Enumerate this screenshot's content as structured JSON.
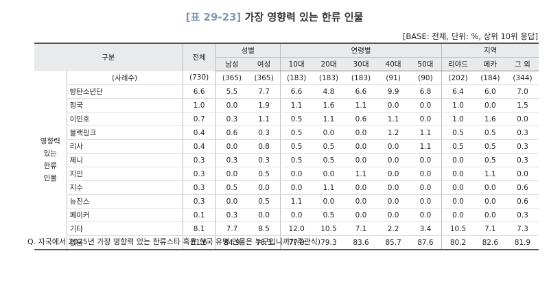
{
  "title": {
    "prefix": "[표 29-23]",
    "text": "가장 영향력 있는 한류 인물"
  },
  "base_note": "[BASE: 전체, 단위: %, 상위 10위 응답]",
  "header": {
    "group_label": "구분",
    "total": "전체",
    "gender": "성별",
    "age": "연령별",
    "region": "지역",
    "columns": [
      "남성",
      "여성",
      "10대",
      "20대",
      "30대",
      "40대",
      "50대",
      "리야드",
      "메카",
      "그 외"
    ]
  },
  "category_label": [
    "영향력",
    "있는",
    "한류",
    "인물"
  ],
  "sample_row": {
    "label": "(사례수)",
    "values": [
      "(730)",
      "(365)",
      "(365)",
      "(183)",
      "(183)",
      "(183)",
      "(91)",
      "(90)",
      "(202)",
      "(184)",
      "(344)"
    ]
  },
  "rows": [
    {
      "label": "방탄소년단",
      "values": [
        "6.6",
        "5.5",
        "7.7",
        "6.6",
        "4.8",
        "6.6",
        "9.9",
        "6.8",
        "6.4",
        "6.0",
        "7.0"
      ]
    },
    {
      "label": "정국",
      "values": [
        "1.0",
        "0.0",
        "1.9",
        "1.1",
        "1.6",
        "1.1",
        "0.0",
        "0.0",
        "1.0",
        "0.0",
        "1.5"
      ]
    },
    {
      "label": "이민호",
      "values": [
        "0.7",
        "0.3",
        "1.1",
        "0.5",
        "1.1",
        "0.6",
        "1.1",
        "0.0",
        "1.0",
        "1.6",
        "0.0"
      ]
    },
    {
      "label": "블랙핑크",
      "values": [
        "0.4",
        "0.6",
        "0.3",
        "0.5",
        "0.0",
        "0.0",
        "1.2",
        "1.1",
        "0.5",
        "0.5",
        "0.3"
      ]
    },
    {
      "label": "리사",
      "values": [
        "0.4",
        "0.0",
        "0.8",
        "0.5",
        "0.5",
        "0.0",
        "0.0",
        "1.1",
        "0.5",
        "0.5",
        "0.3"
      ]
    },
    {
      "label": "제니",
      "values": [
        "0.3",
        "0.3",
        "0.3",
        "0.5",
        "0.5",
        "0.0",
        "0.0",
        "0.0",
        "0.0",
        "0.5",
        "0.3"
      ]
    },
    {
      "label": "지민",
      "values": [
        "0.3",
        "0.0",
        "0.5",
        "0.0",
        "0.0",
        "1.1",
        "0.0",
        "0.0",
        "0.0",
        "1.1",
        "0.0"
      ]
    },
    {
      "label": "지수",
      "values": [
        "0.3",
        "0.5",
        "0.0",
        "0.0",
        "1.1",
        "0.0",
        "0.0",
        "0.0",
        "0.0",
        "0.0",
        "0.6"
      ]
    },
    {
      "label": "뉴진스",
      "values": [
        "0.3",
        "0.0",
        "0.5",
        "1.1",
        "0.0",
        "0.0",
        "0.0",
        "0.0",
        "0.0",
        "0.0",
        "0.6"
      ]
    },
    {
      "label": "페이커",
      "values": [
        "0.1",
        "0.3",
        "0.0",
        "0.0",
        "0.5",
        "0.0",
        "0.0",
        "0.0",
        "0.0",
        "0.0",
        "0.3"
      ]
    },
    {
      "label": "기타",
      "values": [
        "8.1",
        "7.7",
        "8.5",
        "12.0",
        "10.5",
        "7.1",
        "2.2",
        "3.4",
        "10.5",
        "7.1",
        "7.3"
      ]
    },
    {
      "label": "없음",
      "values": [
        "81.6",
        "84.9",
        "78.3",
        "77.0",
        "79.3",
        "83.6",
        "85.7",
        "87.6",
        "80.2",
        "82.6",
        "81.9"
      ]
    }
  ],
  "footnote": "Q. 자국에서 2025년 가장 영향력 있는 한류스타 혹은 한국 유명 인물은 누구입니까?(주관식)"
}
